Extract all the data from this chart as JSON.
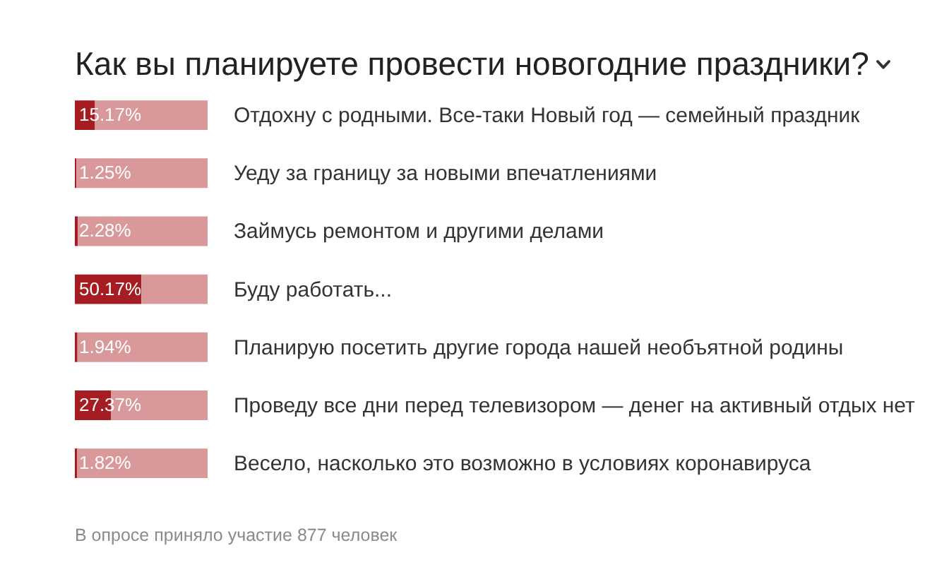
{
  "chart_data": {
    "type": "bar",
    "orientation": "horizontal",
    "stacked": true,
    "title": "Как вы планируете провести новогодние праздники?",
    "categories": [
      "Отдохну с родными. Все-таки Новый год — семейный праздник",
      "Уеду за границу за новыми впечатлениями",
      "Займусь ремонтом и другими делами",
      "Буду работать...",
      "Планирую посетить другие города нашей необъятной родины",
      "Проведу все дни перед телевизором — денег на активный отдых нет",
      "Весело, насколько это возможно в условиях коронавируса"
    ],
    "series": [
      {
        "color": "#a51d23",
        "values": [
          15.17,
          1.25,
          2.28,
          50.17,
          1.94,
          27.37,
          1.82
        ],
        "value_labels": [
          "15.17%",
          "1.25%",
          "2.28%",
          "50.17%",
          "1.94%",
          "27.37%",
          "1.82%"
        ]
      },
      {
        "color": "#d9999b",
        "values": [
          84.83,
          98.75,
          97.72,
          49.83,
          98.06,
          72.63,
          98.18
        ]
      }
    ],
    "xlim": [
      0,
      100
    ],
    "tick_labels": "y",
    "legend": false,
    "annotations": [
      "В опросе приняло участие 877 человек"
    ]
  }
}
